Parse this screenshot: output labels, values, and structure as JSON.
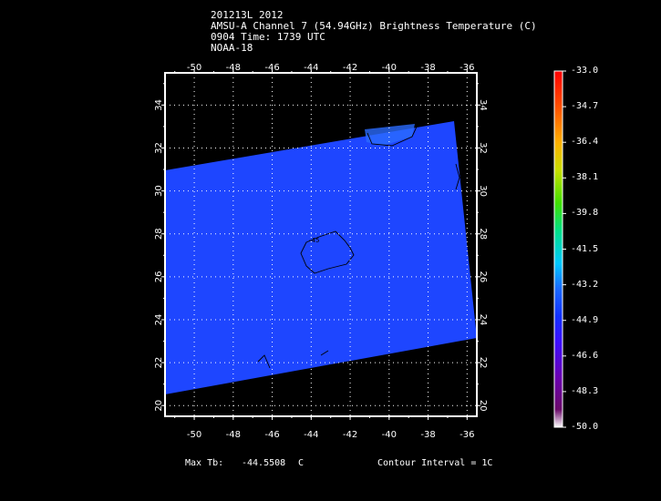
{
  "header": {
    "line1": "201213L 2012",
    "line2": "AMSU-A Channel 7 (54.94GHz) Brightness Temperature (C)",
    "line3": "0904 Time: 1739 UTC",
    "line4": "NOAA-18"
  },
  "map": {
    "lon_ticks": [
      "-50",
      "-48",
      "-46",
      "-44",
      "-42",
      "-40",
      "-38",
      "-36"
    ],
    "lat_ticks": [
      "20",
      "22",
      "24",
      "26",
      "28",
      "30",
      "32",
      "34"
    ],
    "lon_range": [
      -51.5,
      -35.5
    ],
    "lat_range": [
      19.5,
      35.5
    ],
    "fill_color": "#1e46ff",
    "contour_color": "#000000",
    "grid": "dotted"
  },
  "colorbar": {
    "labels": [
      "-33.0",
      "-34.7",
      "-36.4",
      "-38.1",
      "-39.8",
      "-41.5",
      "-43.2",
      "-44.9",
      "-46.6",
      "-48.3",
      "-50.0"
    ],
    "range": [
      -50.0,
      -33.0
    ]
  },
  "footer": {
    "max_label": "Max Tb:",
    "max_value": "-44.5508",
    "max_unit": "C",
    "contour_interval": "Contour Interval = 1C"
  }
}
